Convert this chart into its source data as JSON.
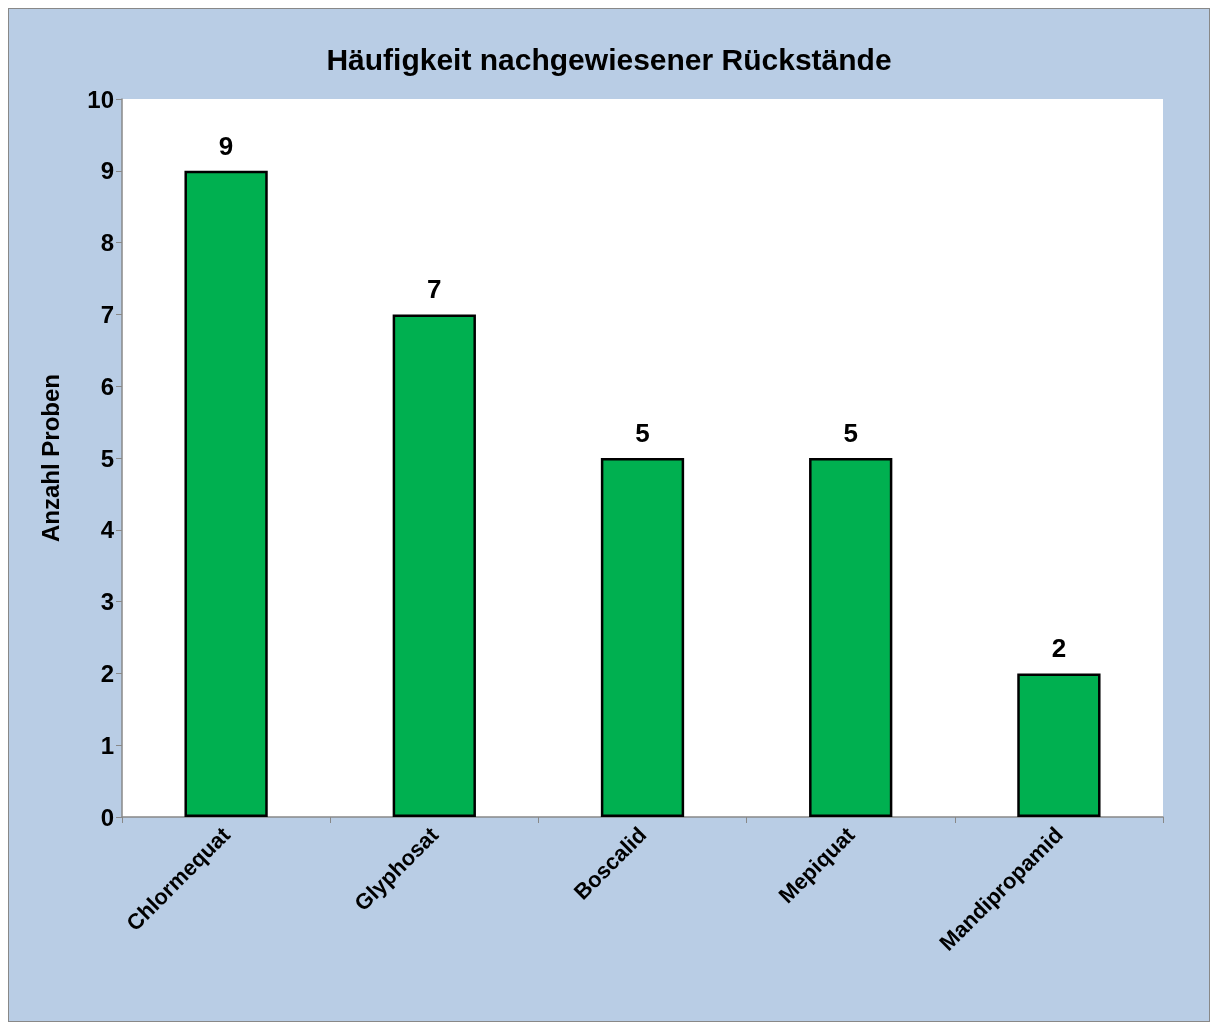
{
  "chart_data": {
    "type": "bar",
    "title": "Häufigkeit nachgewiesener Rückstände",
    "ylabel": "Anzahl Proben",
    "categories": [
      "Chlormequat",
      "Glyphosat",
      "Boscalid",
      "Mepiquat",
      "Mandipropamid"
    ],
    "values": [
      9,
      7,
      5,
      5,
      2
    ],
    "color": "#00b050",
    "ylim": [
      0,
      10
    ],
    "yticks": [
      0,
      1,
      2,
      3,
      4,
      5,
      6,
      7,
      8,
      9,
      10
    ],
    "grid": false,
    "data_labels": true
  }
}
